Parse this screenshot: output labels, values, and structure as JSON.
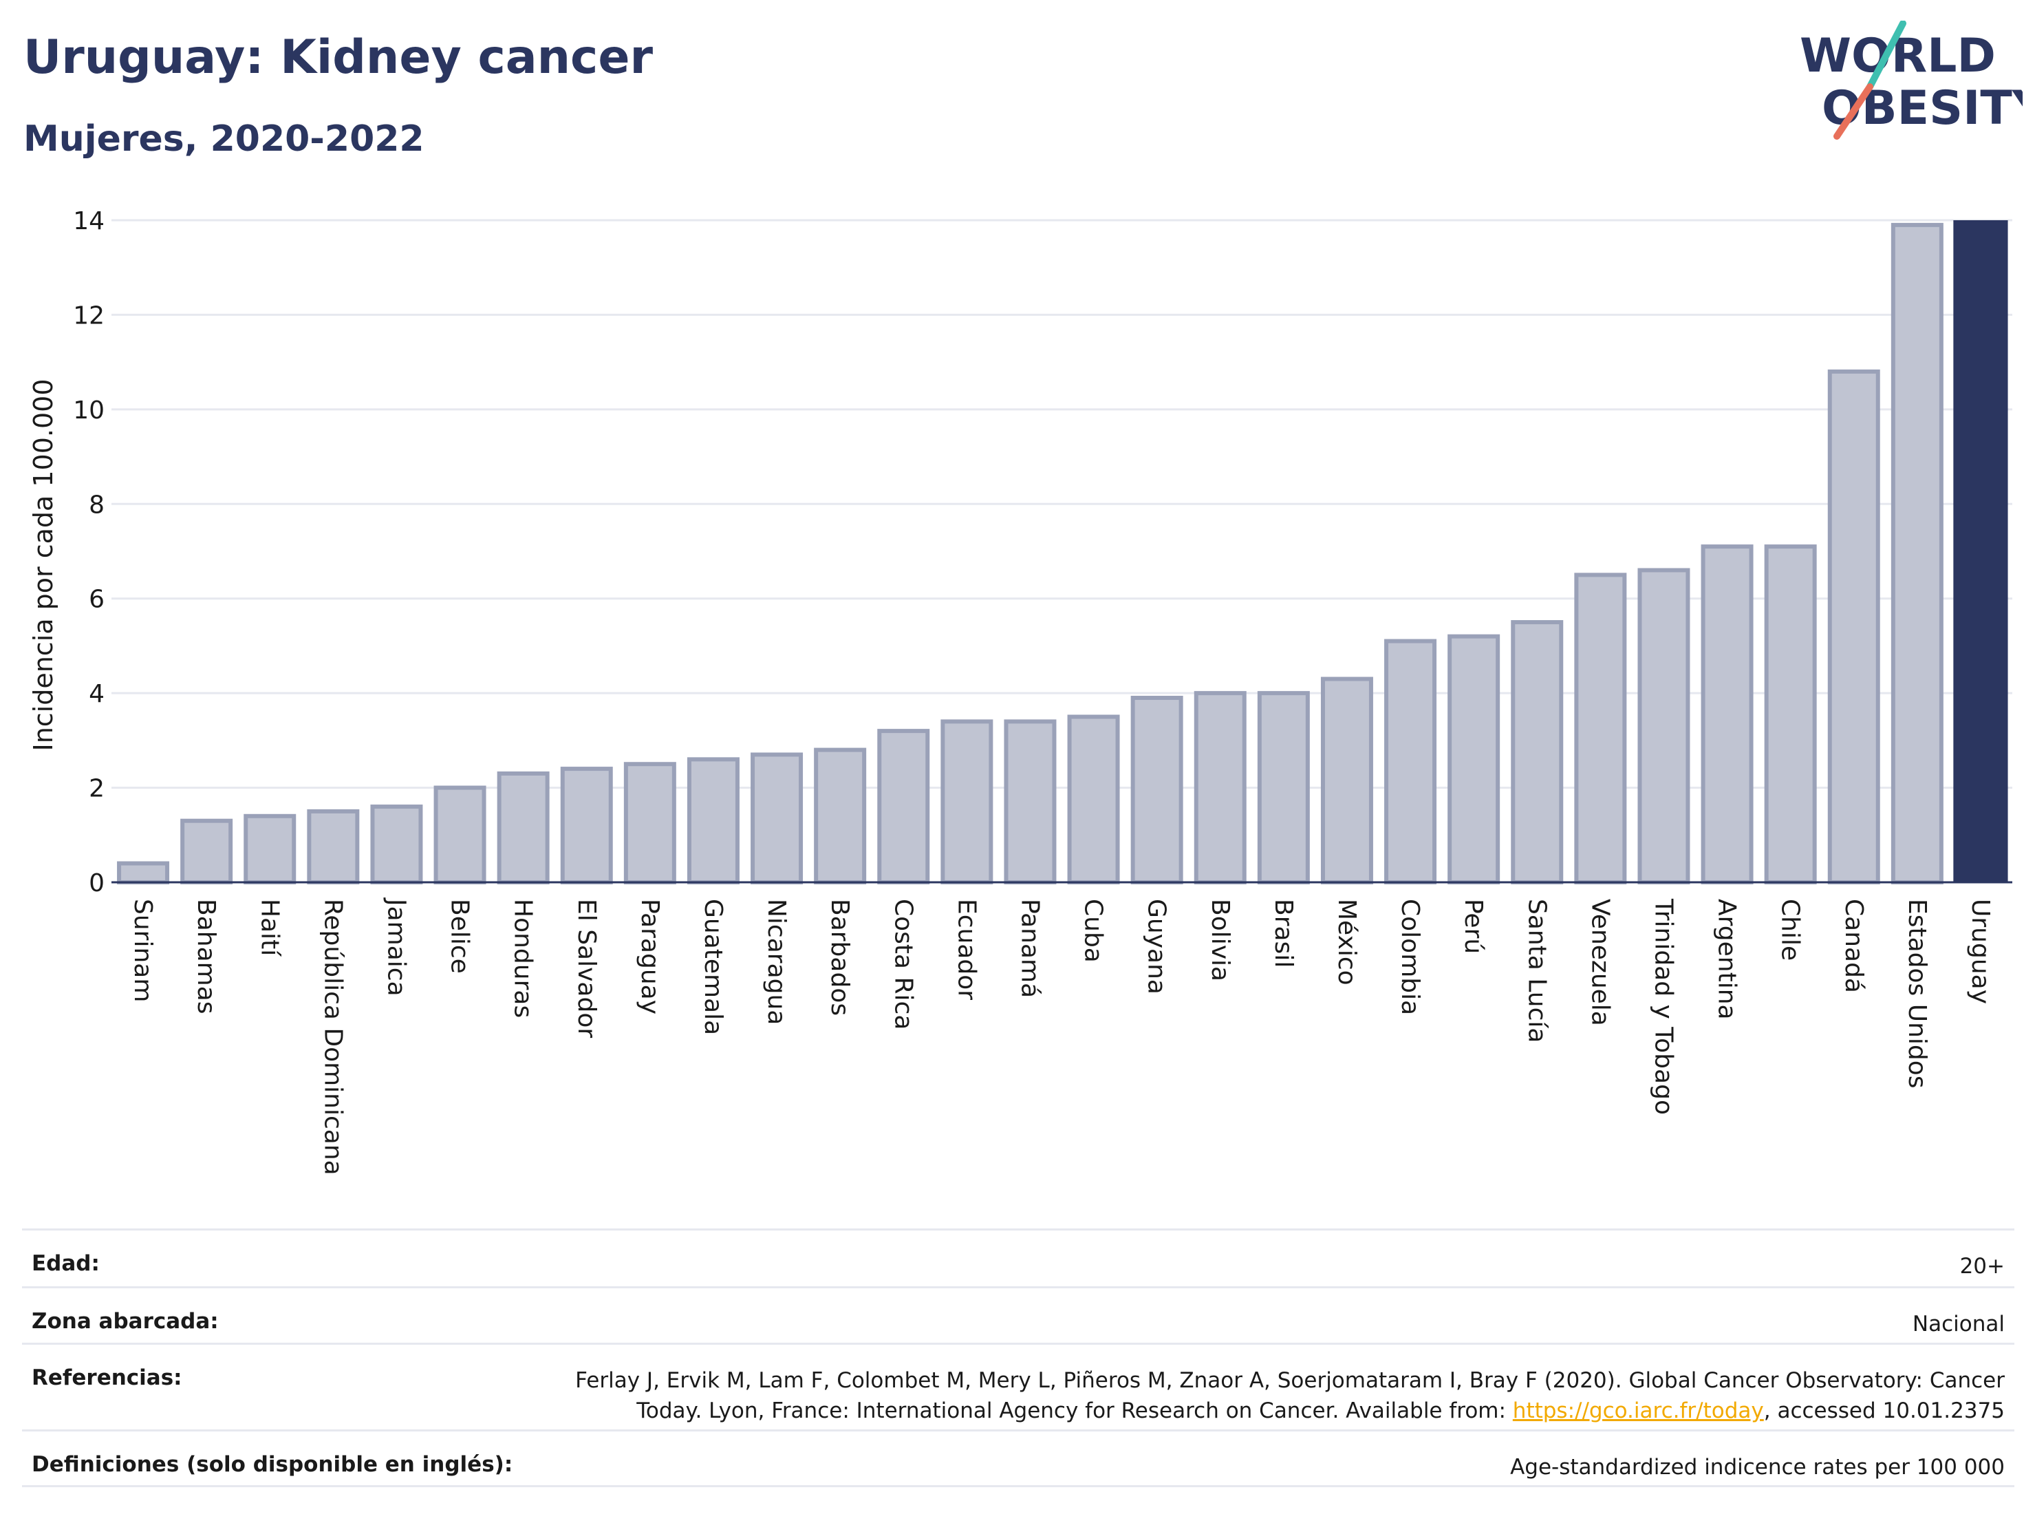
{
  "header": {
    "title": "Uruguay: Kidney cancer",
    "subtitle": "Mujeres, 2020-2022"
  },
  "logo": {
    "line1": "WORLD",
    "line2": "OBESITY",
    "accent_teal": "#3fbfb0",
    "accent_coral": "#e8705a"
  },
  "chart_data": {
    "type": "bar",
    "title": "Uruguay: Kidney cancer",
    "subtitle": "Mujeres, 2020-2022",
    "xlabel": "",
    "ylabel": "Incidencia por cada 100.000",
    "ylim": [
      0,
      14
    ],
    "yticks": [
      0,
      2,
      4,
      6,
      8,
      10,
      12,
      14
    ],
    "grid": true,
    "categories": [
      "Surinam",
      "Bahamas",
      "Haití",
      "República Dominicana",
      "Jamaica",
      "Belice",
      "Honduras",
      "El Salvador",
      "Paraguay",
      "Guatemala",
      "Nicaragua",
      "Barbados",
      "Costa Rica",
      "Ecuador",
      "Panamá",
      "Cuba",
      "Guyana",
      "Bolivia",
      "Brasil",
      "México",
      "Colombia",
      "Perú",
      "Santa Lucía",
      "Venezuela",
      "Trinidad y Tobago",
      "Argentina",
      "Chile",
      "Canadá",
      "Estados Unidos",
      "Uruguay"
    ],
    "values": [
      0.4,
      1.3,
      1.4,
      1.5,
      1.6,
      2.0,
      2.3,
      2.4,
      2.5,
      2.6,
      2.7,
      2.8,
      3.2,
      3.4,
      3.4,
      3.5,
      3.9,
      4.0,
      4.0,
      4.3,
      5.1,
      5.2,
      5.5,
      6.5,
      6.6,
      7.1,
      7.1,
      10.8,
      13.9,
      14.0
    ],
    "highlight": "Uruguay",
    "colors": {
      "bar": "#c0c4d2",
      "bar_border": "#9aa1b8",
      "highlight": "#2b3660",
      "grid": "#e6e8ef",
      "axis": "#2b3660"
    }
  },
  "info": {
    "rows": [
      {
        "label": "Edad:",
        "value": "20+"
      },
      {
        "label": "Zona abarcada:",
        "value": "Nacional"
      },
      {
        "label": "Referencias:",
        "value_line1": "Ferlay J, Ervik M, Lam F, Colombet M, Mery L, Piñeros M, Znaor A, Soerjomataram I, Bray F (2020). Global Cancer Observatory: Cancer",
        "value_line2_pre": "Today. Lyon, France: International Agency for Research on Cancer. Available from: ",
        "link": "https://gco.iarc.fr/today",
        "value_line2_post": ", accessed 10.01.2375"
      },
      {
        "label": "Definiciones (solo disponible en inglés):",
        "value": "Age-standardized indicence rates per 100 000"
      }
    ]
  }
}
